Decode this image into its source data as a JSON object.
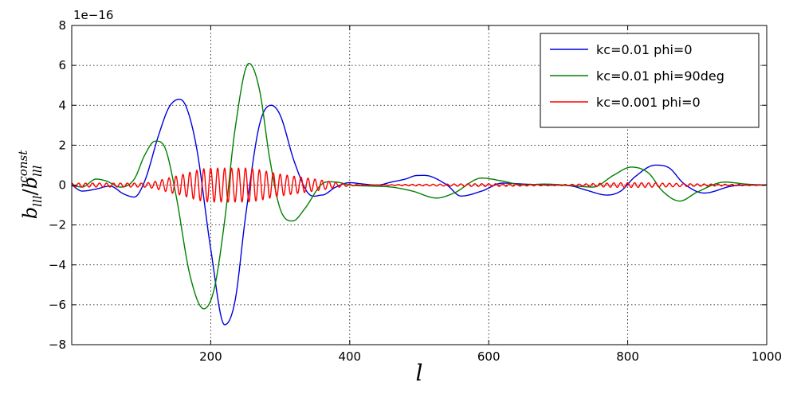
{
  "chart_data": {
    "type": "line",
    "title": "",
    "xlabel": "l",
    "ylabel": {
      "base": "b",
      "sub": "lll",
      "sep": "/",
      "base2": "b",
      "sub2": "lll",
      "sup2": "const"
    },
    "offset_label": "1e−16",
    "xlim": [
      0,
      1000
    ],
    "ylim": [
      -8,
      8
    ],
    "grid": true,
    "legend_position": "top-right",
    "x_ticks": [
      200,
      400,
      600,
      800,
      1000
    ],
    "x_tick_labels": [
      "200",
      "400",
      "600",
      "800",
      "1000"
    ],
    "y_ticks": [
      -8,
      -6,
      -4,
      -2,
      0,
      2,
      4,
      6,
      8
    ],
    "y_tick_labels": [
      "−8",
      "−6",
      "−4",
      "−2",
      "0",
      "2",
      "4",
      "6",
      "8"
    ],
    "series": [
      {
        "name": "kc=0.01 phi=0",
        "color": "#0000dd",
        "x": [
          0,
          15,
          35,
          55,
          75,
          90,
          105,
          125,
          140,
          155,
          165,
          180,
          200,
          220,
          235,
          250,
          270,
          287,
          300,
          320,
          340,
          360,
          380,
          400,
          420,
          440,
          460,
          480,
          497,
          515,
          540,
          560,
          590,
          620,
          650,
          680,
          720,
          740,
          770,
          790,
          810,
          840,
          860,
          880,
          910,
          950,
          980,
          1000
        ],
        "y": [
          0,
          -0.3,
          -0.2,
          -0.05,
          -0.45,
          -0.6,
          0.2,
          2.5,
          3.9,
          4.3,
          3.9,
          1.8,
          -3.2,
          -7.0,
          -5.8,
          -1.6,
          3.0,
          4.0,
          3.5,
          1.2,
          -0.4,
          -0.5,
          -0.1,
          0.12,
          0.05,
          0.0,
          0.15,
          0.3,
          0.48,
          0.45,
          0.0,
          -0.55,
          -0.3,
          0.1,
          0.05,
          0.0,
          -0.05,
          -0.25,
          -0.5,
          -0.3,
          0.4,
          1.0,
          0.85,
          0.1,
          -0.4,
          -0.05,
          0.0,
          0.0
        ]
      },
      {
        "name": "kc=0.01 phi=90deg",
        "color": "#008000",
        "x": [
          0,
          15,
          35,
          50,
          70,
          90,
          105,
          120,
          135,
          150,
          170,
          190,
          205,
          220,
          235,
          255,
          270,
          285,
          300,
          318,
          335,
          360,
          380,
          400,
          430,
          460,
          490,
          525,
          550,
          590,
          620,
          650,
          680,
          710,
          750,
          780,
          805,
          830,
          850,
          875,
          900,
          940,
          970,
          1000
        ],
        "y": [
          0,
          -0.1,
          0.3,
          0.2,
          -0.1,
          0.3,
          1.5,
          2.2,
          1.8,
          -0.5,
          -4.5,
          -6.2,
          -5.2,
          -1.8,
          2.8,
          6.1,
          4.8,
          1.3,
          -1.2,
          -1.8,
          -1.2,
          0.05,
          0.15,
          0.0,
          -0.05,
          -0.1,
          -0.3,
          -0.65,
          -0.4,
          0.35,
          0.2,
          0.0,
          0.05,
          0.0,
          -0.1,
          0.5,
          0.9,
          0.6,
          -0.3,
          -0.8,
          -0.35,
          0.15,
          0.05,
          0.0
        ]
      },
      {
        "name": "kc=0.001 phi=0",
        "color": "#ff0000",
        "x": [
          0,
          100,
          150,
          200,
          250,
          300,
          350,
          400,
          500,
          600,
          700,
          800,
          900,
          1000
        ],
        "y": [
          0.1,
          0.1,
          0.45,
          0.85,
          0.85,
          0.55,
          0.3,
          0.05,
          0.04,
          0.07,
          0.03,
          0.12,
          0.06,
          0.02
        ]
      }
    ]
  }
}
